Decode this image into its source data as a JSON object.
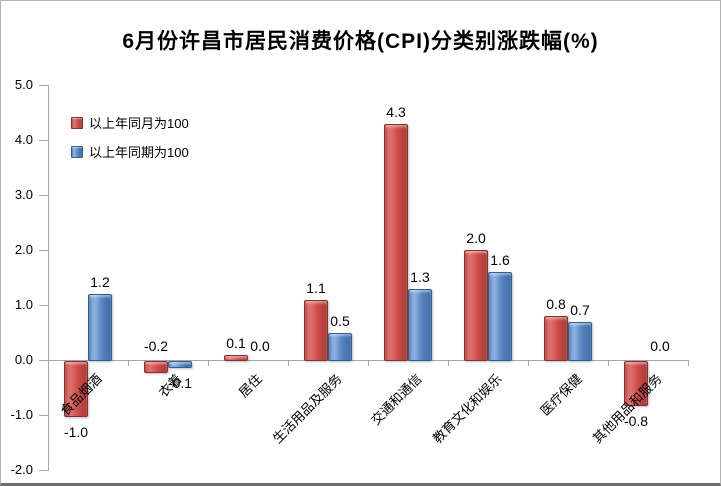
{
  "title": "6月份许昌市居民消费价格(CPI)分类别涨跌幅(%)",
  "chart_data": {
    "type": "bar",
    "title": "6月份许昌市居民消费价格(CPI)分类别涨跌幅(%)",
    "categories": [
      "食品烟酒",
      "衣着",
      "居住",
      "生活用品及服务",
      "交通和通信",
      "教育文化和娱乐",
      "医疗保健",
      "其他用品和服务"
    ],
    "series": [
      {
        "name": "以上年同月为100",
        "color": "#c0504d",
        "values": [
          -1.0,
          -0.2,
          0.1,
          1.1,
          4.3,
          2.0,
          0.8,
          -0.8
        ],
        "label_placement": [
          "below",
          "above-base",
          "above",
          "above",
          "above",
          "above",
          "above",
          "below"
        ]
      },
      {
        "name": "以上年同期为100",
        "color": "#4f81bd",
        "values": [
          1.2,
          -0.1,
          0.0,
          0.5,
          1.3,
          1.6,
          0.7,
          0.0
        ],
        "label_placement": [
          "above",
          "below",
          "above-base",
          "above",
          "above",
          "above",
          "above",
          "above-base"
        ]
      }
    ],
    "ylim": [
      -2.0,
      5.0
    ],
    "ytick_step": 1.0,
    "value_labels": true,
    "value_label_decimals": 1,
    "grid": false,
    "legend_position": "upper-left-inside",
    "xlabel": "",
    "ylabel": ""
  }
}
